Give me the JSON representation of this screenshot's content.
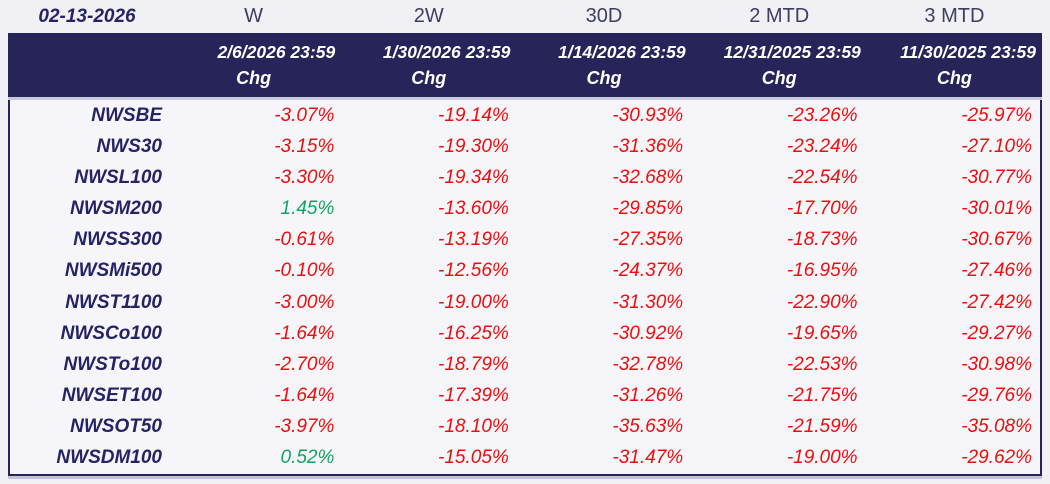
{
  "report": {
    "title_date": "02-13-2026",
    "metric_label": "Chg",
    "periods": [
      {
        "label": "W",
        "as_of": "2/6/2026 23:59"
      },
      {
        "label": "2W",
        "as_of": "1/30/2026 23:59"
      },
      {
        "label": "30D",
        "as_of": "1/14/2026 23:59"
      },
      {
        "label": "2 MTD",
        "as_of": "12/31/2025 23:59"
      },
      {
        "label": "3 MTD",
        "as_of": "11/30/2025 23:59"
      }
    ],
    "rows": [
      {
        "index": "NWSBE",
        "changes": [
          "-3.07%",
          "-19.14%",
          "-30.93%",
          "-23.26%",
          "-25.97%"
        ]
      },
      {
        "index": "NWS30",
        "changes": [
          "-3.15%",
          "-19.30%",
          "-31.36%",
          "-23.24%",
          "-27.10%"
        ]
      },
      {
        "index": "NWSL100",
        "changes": [
          "-3.30%",
          "-19.34%",
          "-32.68%",
          "-22.54%",
          "-30.77%"
        ]
      },
      {
        "index": "NWSM200",
        "changes": [
          "1.45%",
          "-13.60%",
          "-29.85%",
          "-17.70%",
          "-30.01%"
        ]
      },
      {
        "index": "NWSS300",
        "changes": [
          "-0.61%",
          "-13.19%",
          "-27.35%",
          "-18.73%",
          "-30.67%"
        ]
      },
      {
        "index": "NWSMi500",
        "changes": [
          "-0.10%",
          "-12.56%",
          "-24.37%",
          "-16.95%",
          "-27.46%"
        ]
      },
      {
        "index": "NWST1100",
        "changes": [
          "-3.00%",
          "-19.00%",
          "-31.30%",
          "-22.90%",
          "-27.42%"
        ]
      },
      {
        "index": "NWSCo100",
        "changes": [
          "-1.64%",
          "-16.25%",
          "-30.92%",
          "-19.65%",
          "-29.27%"
        ]
      },
      {
        "index": "NWSTo100",
        "changes": [
          "-2.70%",
          "-18.79%",
          "-32.78%",
          "-22.53%",
          "-30.98%"
        ]
      },
      {
        "index": "NWSET100",
        "changes": [
          "-1.64%",
          "-17.39%",
          "-31.26%",
          "-21.75%",
          "-29.76%"
        ]
      },
      {
        "index": "NWSOT50",
        "changes": [
          "-3.97%",
          "-18.10%",
          "-35.63%",
          "-21.59%",
          "-35.08%"
        ]
      },
      {
        "index": "NWSDM100",
        "changes": [
          "0.52%",
          "-15.05%",
          "-31.47%",
          "-19.00%",
          "-29.62%"
        ]
      }
    ],
    "colors": {
      "negative": "#ee0d0d",
      "positive": "#13a35d",
      "header_bg": "#27245a",
      "index_text": "#252364"
    }
  }
}
